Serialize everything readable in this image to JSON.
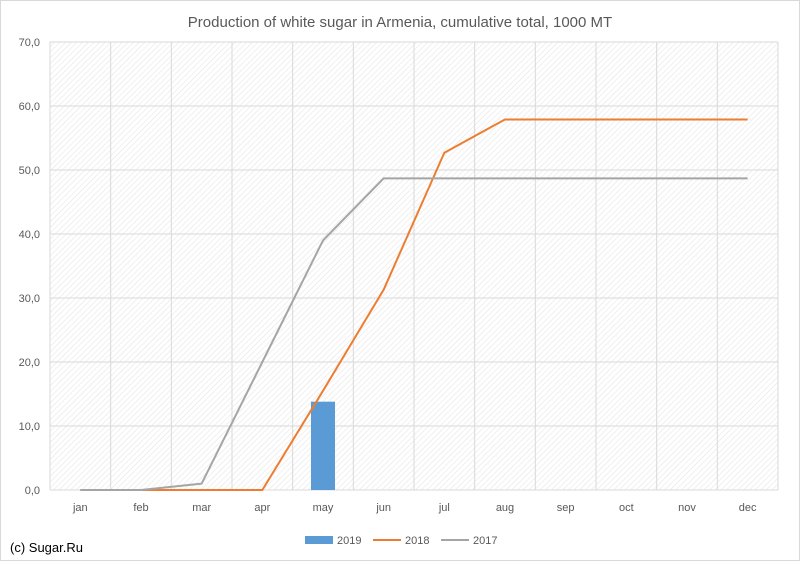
{
  "chart_data": {
    "type": "line",
    "title": "Production of white sugar in Armenia, cumulative total, 1000 MT",
    "xlabel": "",
    "ylabel": "",
    "categories": [
      "jan",
      "feb",
      "mar",
      "apr",
      "may",
      "jun",
      "jul",
      "aug",
      "sep",
      "oct",
      "nov",
      "dec"
    ],
    "ylim": [
      0,
      70
    ],
    "yticks": [
      "0,0",
      "10,0",
      "20,0",
      "30,0",
      "40,0",
      "50,0",
      "60,0",
      "70,0"
    ],
    "grid": true,
    "legend_position": "bottom",
    "series": [
      {
        "name": "2019",
        "kind": "bar",
        "color": "#5b9bd5",
        "values": [
          null,
          null,
          null,
          null,
          13.8,
          null,
          null,
          null,
          null,
          null,
          null,
          null
        ]
      },
      {
        "name": "2018",
        "kind": "line",
        "color": "#ed7d31",
        "values": [
          0,
          0,
          0,
          0,
          15.5,
          31.3,
          52.7,
          57.9,
          57.9,
          57.9,
          57.9,
          57.9
        ]
      },
      {
        "name": "2017",
        "kind": "line",
        "color": "#a5a5a5",
        "values": [
          0,
          0,
          1.0,
          20.0,
          39.0,
          48.7,
          48.7,
          48.7,
          48.7,
          48.7,
          48.7,
          48.7
        ]
      }
    ]
  },
  "credit": "(c) Sugar.Ru"
}
